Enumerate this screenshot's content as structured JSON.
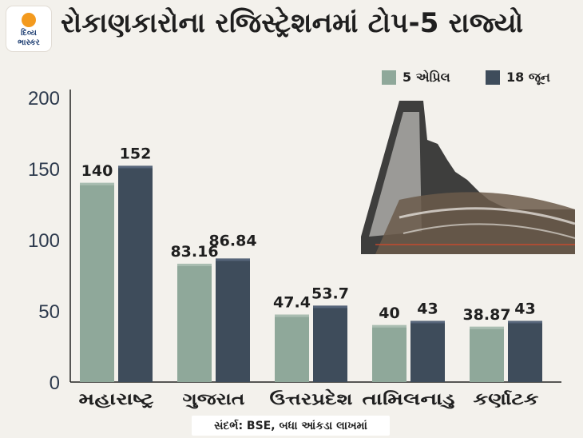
{
  "header": {
    "title": "રોકાણકારોના રજિસ્ટ્રેશનમાં ટોપ-5 રાજ્યો",
    "logo_line1": "દિવ્ય",
    "logo_line2": "ભાસ્કર"
  },
  "source_note": "સંદર્ભ: BSE, બધા આંકડા લાખમાં",
  "colors": {
    "series1": "#8fa89a",
    "series2": "#3e4c5b",
    "background": "#f3f1ec",
    "logo_sun": "#f39a1e",
    "logo_text": "#1f3f73"
  },
  "chart_data": {
    "type": "bar",
    "categories": [
      "મહારાષ્ટ્ર",
      "ગુજરાત",
      "ઉત્તરપ્રદેશ",
      "તામિલનાડુ",
      "કર્ણાટક"
    ],
    "series": [
      {
        "name": "5 એપ્રિલ",
        "values": [
          140,
          83.16,
          47.4,
          40,
          38.87
        ],
        "labels": [
          "140",
          "83.16",
          "47.4",
          "40",
          "38.87"
        ]
      },
      {
        "name": "18 જૂન",
        "values": [
          152,
          86.84,
          53.7,
          43,
          43
        ],
        "labels": [
          "152",
          "86.84",
          "53.7",
          "43",
          "43"
        ]
      }
    ],
    "yticks": [
      "0",
      "50",
      "100",
      "150",
      "200"
    ],
    "ylim": [
      0,
      200
    ],
    "legend_position": "top-right",
    "grid": false
  }
}
